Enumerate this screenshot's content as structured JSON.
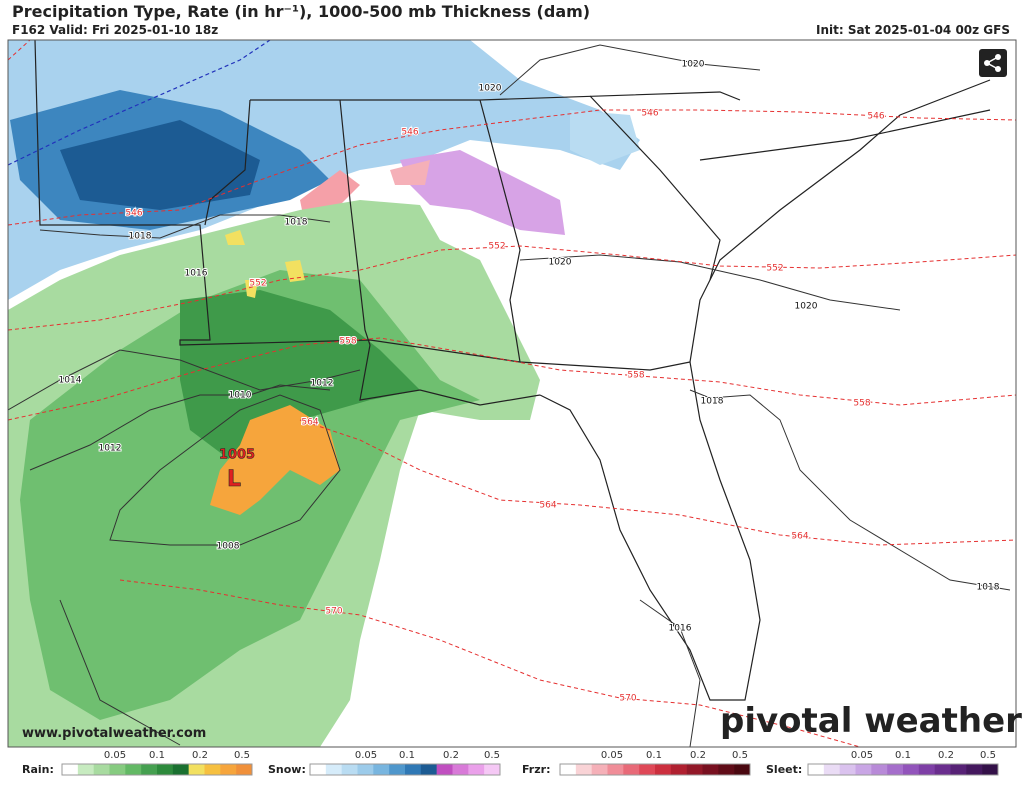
{
  "header": {
    "title": "Precipitation Type, Rate (in hr⁻¹), 1000-500 mb Thickness (dam)",
    "valid": "F162 Valid: Fri 2025-01-10 18z",
    "init": "Init: Sat 2025-01-04 00z GFS"
  },
  "map": {
    "pressure_labels": [
      "1020",
      "1020",
      "1020",
      "1020",
      "1018",
      "1018",
      "1016",
      "1014",
      "1012",
      "1010",
      "1012",
      "1008",
      "1018",
      "1016",
      "1018"
    ],
    "low": {
      "pressure": "1005",
      "marker": "L"
    },
    "thickness_labels": [
      "546",
      "546",
      "546",
      "546",
      "552",
      "552",
      "552",
      "558",
      "558",
      "558",
      "564",
      "564",
      "564",
      "570",
      "570"
    ],
    "website": "www.pivotalweather.com",
    "logo": "pivotal weather"
  },
  "legend": [
    {
      "label": "Rain:",
      "ticks": [
        "0.05",
        "0.1",
        "0.2",
        "0.5"
      ]
    },
    {
      "label": "Snow:",
      "ticks": [
        "0.05",
        "0.1",
        "0.2",
        "0.5"
      ]
    },
    {
      "label": "Frzr:",
      "ticks": [
        "0.05",
        "0.1",
        "0.2",
        "0.5"
      ]
    },
    {
      "label": "Sleet:",
      "ticks": [
        "0.05",
        "0.1",
        "0.2",
        "0.5"
      ]
    }
  ]
}
